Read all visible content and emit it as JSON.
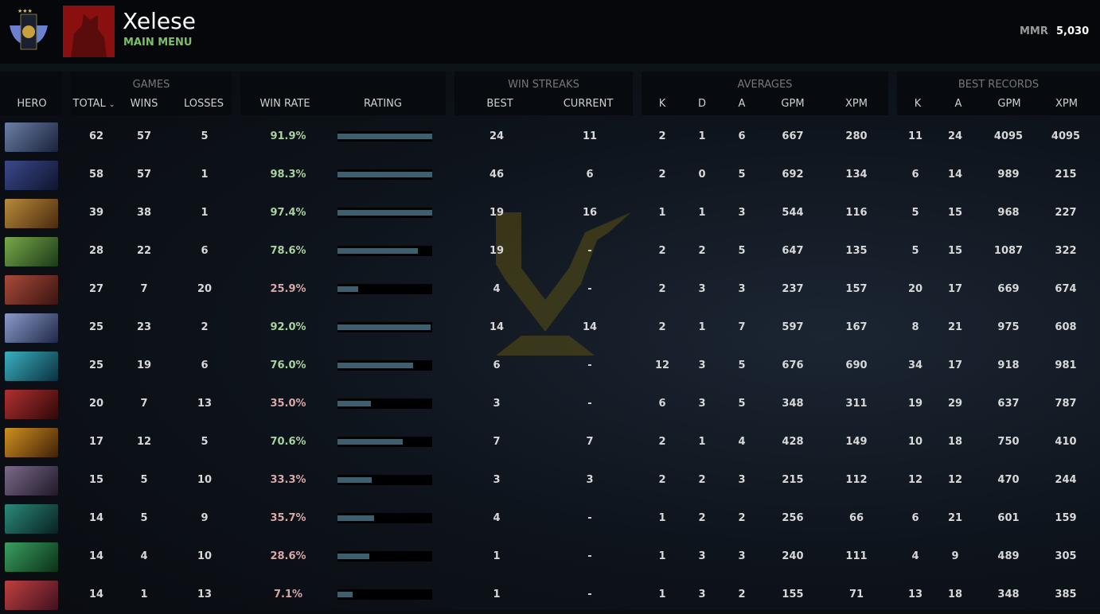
{
  "profile": {
    "name": "Xelese",
    "menu_label": "MAIN MENU",
    "mmr_label": "MMR",
    "mmr_value": "5,030"
  },
  "headers": {
    "hero": "HERO",
    "games": {
      "title": "GAMES",
      "total": "TOTAL",
      "wins": "WINS",
      "losses": "LOSSES"
    },
    "win_rate": "WIN RATE",
    "rating": "RATING",
    "streaks": {
      "title": "WIN STREAKS",
      "best": "BEST",
      "current": "CURRENT"
    },
    "averages": {
      "title": "AVERAGES",
      "k": "K",
      "d": "D",
      "a": "A",
      "gpm": "GPM",
      "xpm": "XPM"
    },
    "best": {
      "title": "BEST RECORDS",
      "k": "K",
      "a": "A",
      "gpm": "GPM",
      "xpm": "XPM"
    }
  },
  "colors": {
    "win_high": "#a7d3a0",
    "win_low": "#d9a8a8",
    "bar": "#3f5f6d",
    "accent": "#7fbf6a"
  },
  "rows": [
    {
      "portrait": [
        "#6a7fa8",
        "#1a2238"
      ],
      "total": "62",
      "wins": "57",
      "losses": "5",
      "win_rate": "91.9%",
      "high": true,
      "rating": 1.0,
      "best_streak": "24",
      "current": "11",
      "k": "2",
      "d": "1",
      "a": "6",
      "gpm": "667",
      "xpm": "280",
      "bk": "11",
      "ba": "24",
      "bgpm": "4095",
      "bxpm": "4095"
    },
    {
      "portrait": [
        "#3a4a8a",
        "#101430"
      ],
      "total": "58",
      "wins": "57",
      "losses": "1",
      "win_rate": "98.3%",
      "high": true,
      "rating": 1.0,
      "best_streak": "46",
      "current": "6",
      "k": "2",
      "d": "0",
      "a": "5",
      "gpm": "692",
      "xpm": "134",
      "bk": "6",
      "ba": "14",
      "bgpm": "989",
      "bxpm": "215"
    },
    {
      "portrait": [
        "#b88a3a",
        "#4a2a10"
      ],
      "total": "39",
      "wins": "38",
      "losses": "1",
      "win_rate": "97.4%",
      "high": true,
      "rating": 1.0,
      "best_streak": "19",
      "current": "16",
      "k": "1",
      "d": "1",
      "a": "3",
      "gpm": "544",
      "xpm": "116",
      "bk": "5",
      "ba": "15",
      "bgpm": "968",
      "bxpm": "227"
    },
    {
      "portrait": [
        "#7aa84a",
        "#1a3a18"
      ],
      "total": "28",
      "wins": "22",
      "losses": "6",
      "win_rate": "78.6%",
      "high": true,
      "rating": 0.85,
      "best_streak": "19",
      "current": "-",
      "k": "2",
      "d": "2",
      "a": "5",
      "gpm": "647",
      "xpm": "135",
      "bk": "5",
      "ba": "15",
      "bgpm": "1087",
      "bxpm": "322"
    },
    {
      "portrait": [
        "#a84a3a",
        "#3a1410"
      ],
      "total": "27",
      "wins": "7",
      "losses": "20",
      "win_rate": "25.9%",
      "high": false,
      "rating": 0.22,
      "best_streak": "4",
      "current": "-",
      "k": "2",
      "d": "3",
      "a": "3",
      "gpm": "237",
      "xpm": "157",
      "bk": "20",
      "ba": "17",
      "bgpm": "669",
      "bxpm": "674"
    },
    {
      "portrait": [
        "#8a9ac8",
        "#202848"
      ],
      "total": "25",
      "wins": "23",
      "losses": "2",
      "win_rate": "92.0%",
      "high": true,
      "rating": 0.98,
      "best_streak": "14",
      "current": "14",
      "k": "2",
      "d": "1",
      "a": "7",
      "gpm": "597",
      "xpm": "167",
      "bk": "8",
      "ba": "21",
      "bgpm": "975",
      "bxpm": "608"
    },
    {
      "portrait": [
        "#3ab0c0",
        "#0a3040"
      ],
      "total": "25",
      "wins": "19",
      "losses": "6",
      "win_rate": "76.0%",
      "high": true,
      "rating": 0.8,
      "best_streak": "6",
      "current": "-",
      "k": "12",
      "d": "3",
      "a": "5",
      "gpm": "676",
      "xpm": "690",
      "bk": "34",
      "ba": "17",
      "bgpm": "918",
      "bxpm": "981"
    },
    {
      "portrait": [
        "#b03030",
        "#300808"
      ],
      "total": "20",
      "wins": "7",
      "losses": "13",
      "win_rate": "35.0%",
      "high": false,
      "rating": 0.35,
      "best_streak": "3",
      "current": "-",
      "k": "6",
      "d": "3",
      "a": "5",
      "gpm": "348",
      "xpm": "311",
      "bk": "19",
      "ba": "29",
      "bgpm": "637",
      "bxpm": "787"
    },
    {
      "portrait": [
        "#d09020",
        "#402008"
      ],
      "total": "17",
      "wins": "12",
      "losses": "5",
      "win_rate": "70.6%",
      "high": true,
      "rating": 0.69,
      "best_streak": "7",
      "current": "7",
      "k": "2",
      "d": "1",
      "a": "4",
      "gpm": "428",
      "xpm": "149",
      "bk": "10",
      "ba": "18",
      "bgpm": "750",
      "bxpm": "410"
    },
    {
      "portrait": [
        "#7a6a8a",
        "#201828"
      ],
      "total": "15",
      "wins": "5",
      "losses": "10",
      "win_rate": "33.3%",
      "high": false,
      "rating": 0.36,
      "best_streak": "3",
      "current": "3",
      "k": "2",
      "d": "2",
      "a": "3",
      "gpm": "215",
      "xpm": "112",
      "bk": "12",
      "ba": "12",
      "bgpm": "470",
      "bxpm": "244"
    },
    {
      "portrait": [
        "#2a8a7a",
        "#0a2020"
      ],
      "total": "14",
      "wins": "5",
      "losses": "9",
      "win_rate": "35.7%",
      "high": false,
      "rating": 0.39,
      "best_streak": "4",
      "current": "-",
      "k": "1",
      "d": "2",
      "a": "2",
      "gpm": "256",
      "xpm": "66",
      "bk": "6",
      "ba": "21",
      "bgpm": "601",
      "bxpm": "159"
    },
    {
      "portrait": [
        "#3aa060",
        "#0a3018"
      ],
      "total": "14",
      "wins": "4",
      "losses": "10",
      "win_rate": "28.6%",
      "high": false,
      "rating": 0.34,
      "best_streak": "1",
      "current": "-",
      "k": "1",
      "d": "3",
      "a": "3",
      "gpm": "240",
      "xpm": "111",
      "bk": "4",
      "ba": "9",
      "bgpm": "489",
      "bxpm": "305"
    },
    {
      "portrait": [
        "#c04040",
        "#401020"
      ],
      "total": "14",
      "wins": "1",
      "losses": "13",
      "win_rate": "7.1%",
      "high": false,
      "rating": 0.16,
      "best_streak": "1",
      "current": "-",
      "k": "1",
      "d": "3",
      "a": "2",
      "gpm": "155",
      "xpm": "71",
      "bk": "13",
      "ba": "18",
      "bgpm": "348",
      "bxpm": "385"
    }
  ]
}
